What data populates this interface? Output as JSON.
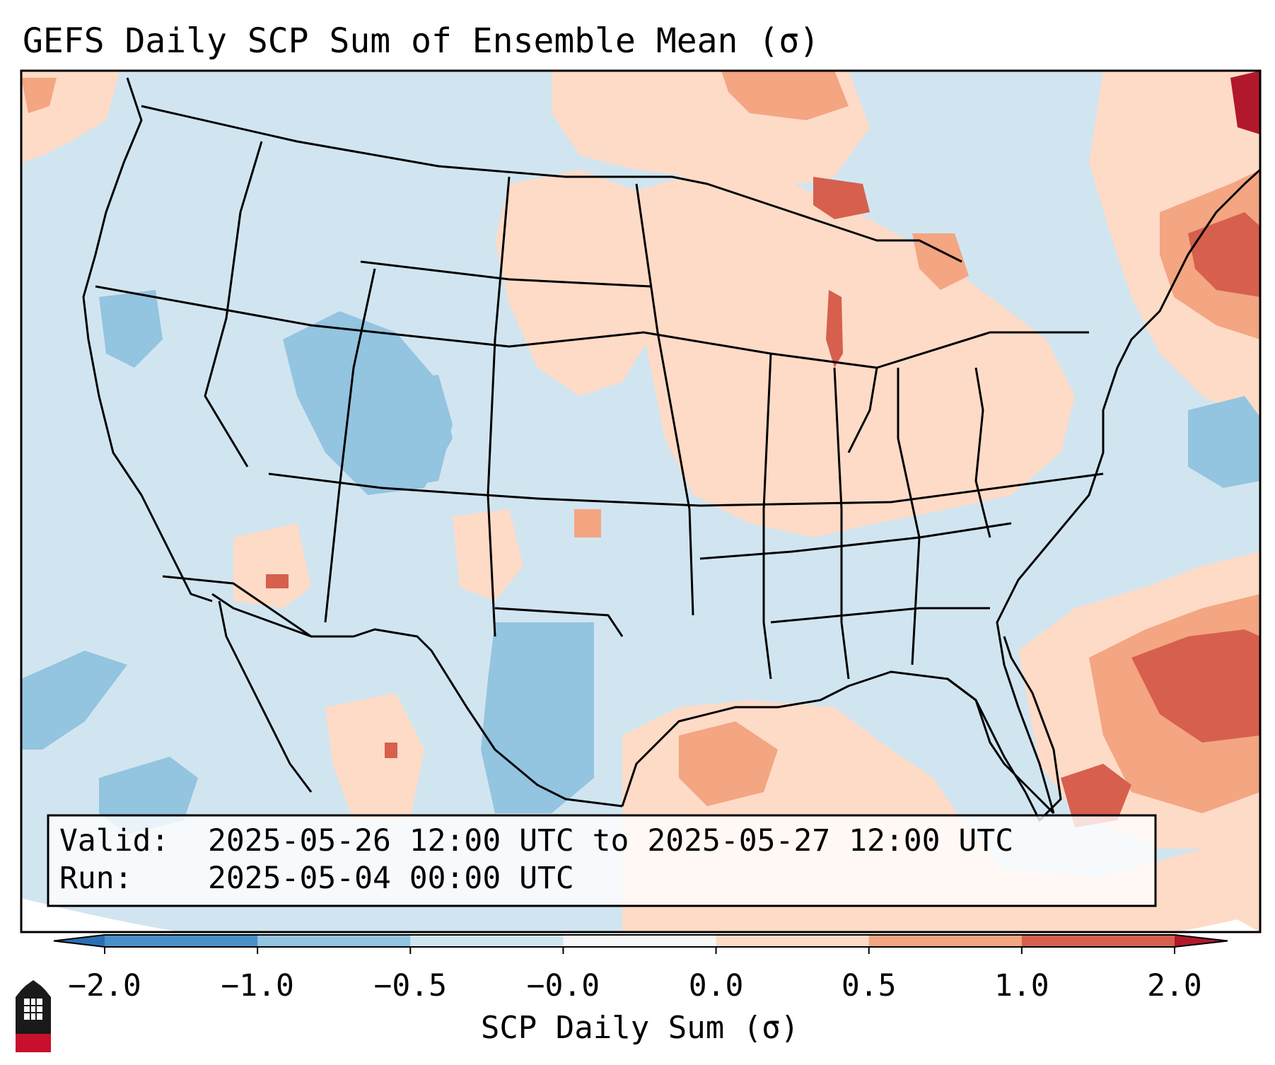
{
  "title": "GEFS Daily SCP Sum of Ensemble Mean (σ)",
  "info": {
    "valid_label": "Valid:",
    "valid_value": "2025-05-26 12:00 UTC to 2025-05-27 12:00 UTC",
    "run_label": "Run:",
    "run_value": "2025-05-04 00:00 UTC"
  },
  "colorbar": {
    "label": "SCP Daily Sum (σ)",
    "ticks": [
      "−2.0",
      "−1.0",
      "−0.5",
      "−0.0",
      "0.0",
      "0.5",
      "1.0",
      "2.0"
    ],
    "bins": [
      {
        "range": "< -2.0",
        "color": "#2b6fb3"
      },
      {
        "range": "-2.0 to -1.0",
        "color": "#4a90c8"
      },
      {
        "range": "-1.0 to -0.5",
        "color": "#93c4e0"
      },
      {
        "range": "-0.5 to -0.0",
        "color": "#d1e5f0"
      },
      {
        "range": "-0.0 to 0.0",
        "color": "#f7f7f7"
      },
      {
        "range": "0.0 to 0.5",
        "color": "#fddbc7"
      },
      {
        "range": "0.5 to 1.0",
        "color": "#f4a582"
      },
      {
        "range": "1.0 to 2.0",
        "color": "#d6604d"
      },
      {
        "range": "> 2.0",
        "color": "#b2182b"
      }
    ]
  },
  "logo": {
    "text": "NIU",
    "color": "#c8102e"
  },
  "colors": {
    "base_blue": "#d1e5f0",
    "light_red": "#fddbc7",
    "mid_red": "#f4a582",
    "strong_red": "#d6604d",
    "dark_red": "#b2182b",
    "mid_blue": "#93c4e0"
  }
}
